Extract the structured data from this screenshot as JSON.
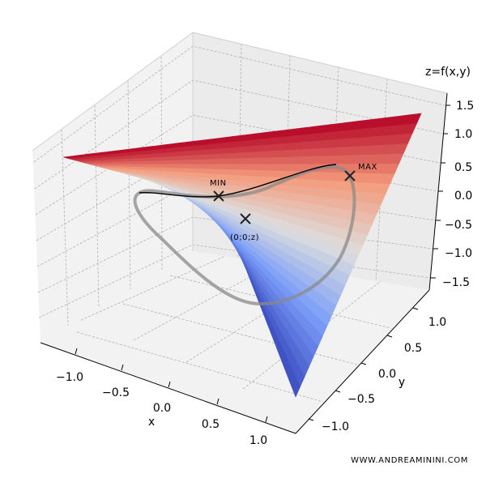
{
  "chart_data": {
    "type": "surface",
    "function": "z = x^2 - y^2",
    "x": {
      "label": "x",
      "range": [
        -1.25,
        1.25
      ],
      "ticks": [
        "−1.0",
        "−0.5",
        "0.0",
        "0.5",
        "1.0"
      ]
    },
    "y": {
      "label": "y",
      "range": [
        -1.25,
        1.25
      ],
      "ticks": [
        "−1.0",
        "−0.5",
        "0.0",
        "0.5",
        "1.0"
      ]
    },
    "z": {
      "label": "z=f(x,y)",
      "range": [
        -1.6,
        1.6
      ],
      "ticks": [
        "1.5",
        "1.0",
        "0.5",
        "0.0",
        "−0.5",
        "−1.0",
        "−1.5"
      ]
    },
    "colormap": "coolwarm",
    "grid": true,
    "constraint_curve": "unit circle x^2 + y^2 = 1 projected onto the surface",
    "markers": [
      {
        "label": "MIN",
        "x": 0,
        "y": 1,
        "z": -1
      },
      {
        "label": "MAX",
        "x": 1,
        "y": 0,
        "z": 1
      },
      {
        "label": "(0;0;z)",
        "x": 0,
        "y": 0,
        "z": 0
      }
    ]
  },
  "watermark": "WWW.ANDREAMININI.COM"
}
